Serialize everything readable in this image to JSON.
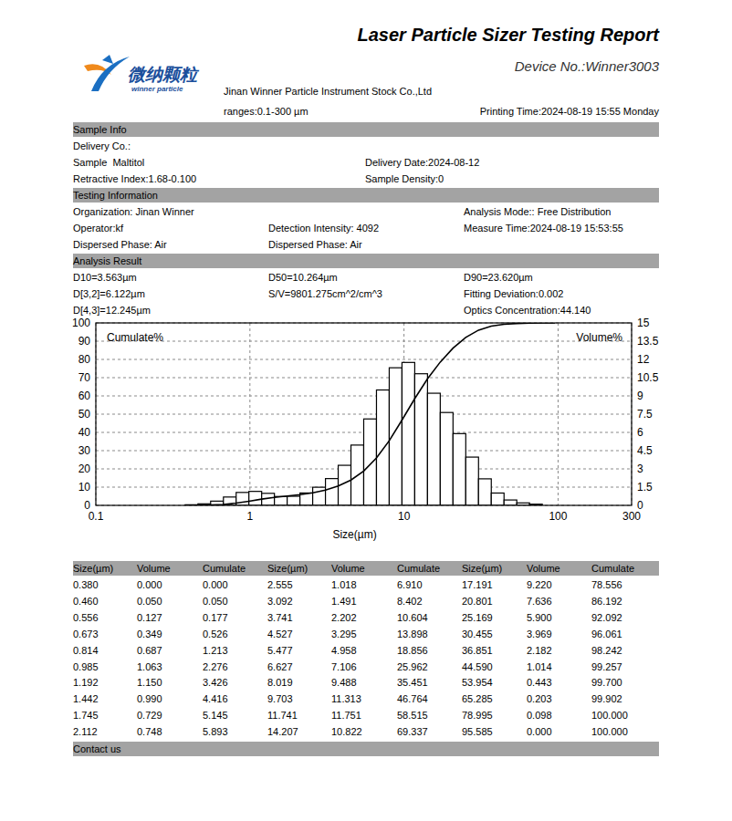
{
  "header": {
    "title": "Laser Particle Sizer Testing Report",
    "logo_cn": "微纳颗粒",
    "logo_en": "winner particle",
    "device": "Device No.:Winner3003",
    "company": "Jinan Winner Particle Instrument Stock Co.,Ltd",
    "ranges": "ranges:0.1-300 µm",
    "printing_time": "Printing Time:2024-08-19 15:55 Monday"
  },
  "sections": [
    {
      "title": "Sample Info",
      "rows": [
        [
          "Delivery Co.:"
        ],
        [
          "Sample  Maltitol",
          "Delivery Date:2024-08-12"
        ],
        [
          "Retractive Index:1.68-0.100",
          "Sample Density:0"
        ]
      ]
    },
    {
      "title": "Testing Information",
      "rows": [
        [
          "Organization: Jinan Winner",
          null,
          "Analysis Mode:: Free Distribution"
        ],
        [
          "Operator:kf",
          "Detection Intensity: 4092",
          "Measure Time:2024-08-19 15:53:55"
        ],
        [
          "Dispersed Phase: Air",
          "Dispersed Phase: Air",
          null
        ]
      ]
    },
    {
      "title": "Analysis Result",
      "rows": [
        [
          "D10=3.563µm",
          "D50=10.264µm",
          "D90=23.620µm"
        ],
        [
          "D[3,2]=6.122µm",
          "S/V=9801.275cm^2/cm^3",
          "Fitting Deviation:0.002"
        ],
        [
          "D[4,3]=12.245µm",
          null,
          "Optics Concentration:44.140"
        ]
      ]
    }
  ],
  "chart_data": {
    "type": "histogram",
    "x_label": "Size(µm)",
    "y_label": "Cumulate%",
    "y2_label": "Volume%",
    "log": "x",
    "grid": true,
    "xlim": [
      0.1,
      300
    ],
    "xticks": [
      0.1,
      1,
      10,
      100,
      300
    ],
    "ylim": [
      0,
      100
    ],
    "yticks": [
      0,
      10,
      20,
      30,
      40,
      50,
      60,
      70,
      80,
      90,
      100
    ],
    "y2lim": [
      0,
      15
    ],
    "y2ticks": [
      0,
      1.5,
      3,
      4.5,
      6,
      7.5,
      9,
      10.5,
      12,
      13.5,
      15
    ],
    "bins": [
      0.38,
      0.46,
      0.556,
      0.673,
      0.814,
      0.985,
      1.192,
      1.442,
      1.745,
      2.112,
      2.555,
      3.092,
      3.741,
      4.527,
      5.477,
      6.627,
      8.019,
      9.703,
      11.741,
      14.207,
      17.191,
      20.801,
      25.169,
      30.455,
      36.851,
      44.59,
      53.954,
      65.285,
      78.995,
      95.585
    ],
    "series": [
      {
        "type": "histogram",
        "axis": "y2",
        "color": "#ffffff",
        "values": [
          0.05,
          0.127,
          0.349,
          0.687,
          1.063,
          1.15,
          0.99,
          0.729,
          0.748,
          1.018,
          1.491,
          2.202,
          3.295,
          4.958,
          7.106,
          9.488,
          11.313,
          11.751,
          10.822,
          9.22,
          7.636,
          5.9,
          3.969,
          2.182,
          1.014,
          0.443,
          0.203,
          0.098,
          0
        ]
      },
      {
        "type": "line",
        "color": "#000000",
        "x": [
          0.38,
          0.46,
          0.556,
          0.673,
          0.814,
          0.985,
          1.192,
          1.442,
          1.745,
          2.112,
          2.555,
          3.092,
          3.741,
          4.527,
          5.477,
          6.627,
          8.019,
          9.703,
          11.741,
          14.207,
          17.191,
          20.801,
          25.169,
          30.455,
          36.851,
          44.59,
          53.954,
          65.285,
          78.995,
          95.585
        ],
        "values": [
          0,
          0.05,
          0.177,
          0.526,
          1.213,
          2.276,
          3.426,
          4.416,
          5.145,
          5.893,
          6.91,
          8.402,
          10.604,
          13.898,
          18.856,
          25.962,
          35.451,
          46.764,
          58.515,
          69.337,
          78.556,
          86.192,
          92.092,
          96.061,
          98.242,
          99.257,
          99.7,
          99.902,
          100,
          100
        ]
      }
    ]
  },
  "table": {
    "columns": [
      "Size(µm)",
      "Volume",
      "Cumulate",
      "Size(µm)",
      "Volume",
      "Cumulate",
      "Size(µm)",
      "Volume",
      "Cumulate"
    ],
    "rows": [
      [
        "0.380",
        "0.000",
        "0.000",
        "2.555",
        "1.018",
        "6.910",
        "17.191",
        "9.220",
        "78.556"
      ],
      [
        "0.460",
        "0.050",
        "0.050",
        "3.092",
        "1.491",
        "8.402",
        "20.801",
        "7.636",
        "86.192"
      ],
      [
        "0.556",
        "0.127",
        "0.177",
        "3.741",
        "2.202",
        "10.604",
        "25.169",
        "5.900",
        "92.092"
      ],
      [
        "0.673",
        "0.349",
        "0.526",
        "4.527",
        "3.295",
        "13.898",
        "30.455",
        "3.969",
        "96.061"
      ],
      [
        "0.814",
        "0.687",
        "1.213",
        "5.477",
        "4.958",
        "18.856",
        "36.851",
        "2.182",
        "98.242"
      ],
      [
        "0.985",
        "1.063",
        "2.276",
        "6.627",
        "7.106",
        "25.962",
        "44.590",
        "1.014",
        "99.257"
      ],
      [
        "1.192",
        "1.150",
        "3.426",
        "8.019",
        "9.488",
        "35.451",
        "53.954",
        "0.443",
        "99.700"
      ],
      [
        "1.442",
        "0.990",
        "4.416",
        "9.703",
        "11.313",
        "46.764",
        "65.285",
        "0.203",
        "99.902"
      ],
      [
        "1.745",
        "0.729",
        "5.145",
        "11.741",
        "11.751",
        "58.515",
        "78.995",
        "0.098",
        "100.000"
      ],
      [
        "2.112",
        "0.748",
        "5.893",
        "14.207",
        "10.822",
        "69.337",
        "95.585",
        "0.000",
        "100.000"
      ]
    ]
  },
  "footer": {
    "title": "Contact us"
  }
}
